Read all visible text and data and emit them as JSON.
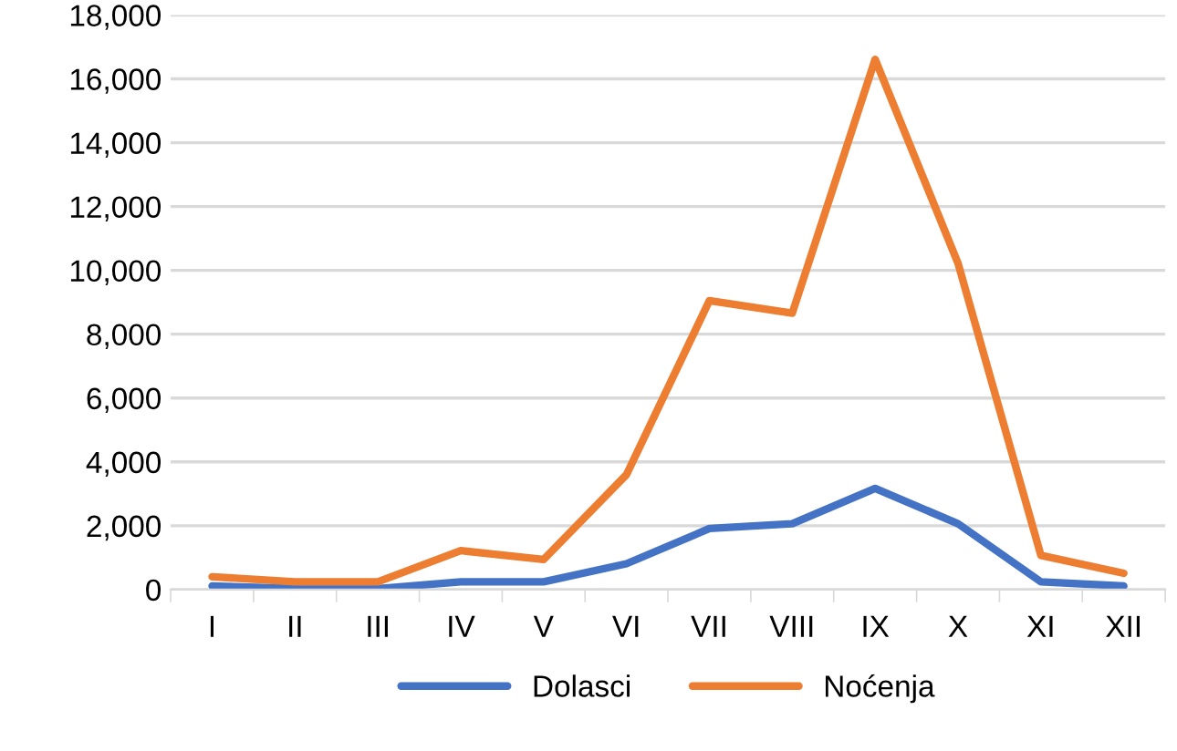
{
  "chart_data": {
    "type": "line",
    "categories": [
      "I",
      "II",
      "III",
      "IV",
      "V",
      "VI",
      "VII",
      "VIII",
      "IX",
      "X",
      "XI",
      "XII"
    ],
    "series": [
      {
        "name": "Dolasci",
        "color": "#4472c4",
        "values": [
          110,
          30,
          30,
          240,
          240,
          810,
          1910,
          2060,
          3170,
          2060,
          240,
          110
        ]
      },
      {
        "name": "Noćenja",
        "color": "#ed7d31",
        "values": [
          400,
          240,
          240,
          1220,
          940,
          3600,
          9050,
          8660,
          16610,
          10220,
          1070,
          510
        ]
      }
    ],
    "ylim": [
      0,
      18000
    ],
    "yticks": [
      {
        "value": 0,
        "label": "0"
      },
      {
        "value": 2000,
        "label": "2,000"
      },
      {
        "value": 4000,
        "label": "4,000"
      },
      {
        "value": 6000,
        "label": "6,000"
      },
      {
        "value": 8000,
        "label": "8,000"
      },
      {
        "value": 10000,
        "label": "10,000"
      },
      {
        "value": 12000,
        "label": "12,000"
      },
      {
        "value": 14000,
        "label": "14,000"
      },
      {
        "value": 16000,
        "label": "16,000"
      },
      {
        "value": 18000,
        "label": "18,000"
      }
    ],
    "grid": "y",
    "legend": "bottom",
    "marker": "none",
    "line_style": "solid"
  }
}
